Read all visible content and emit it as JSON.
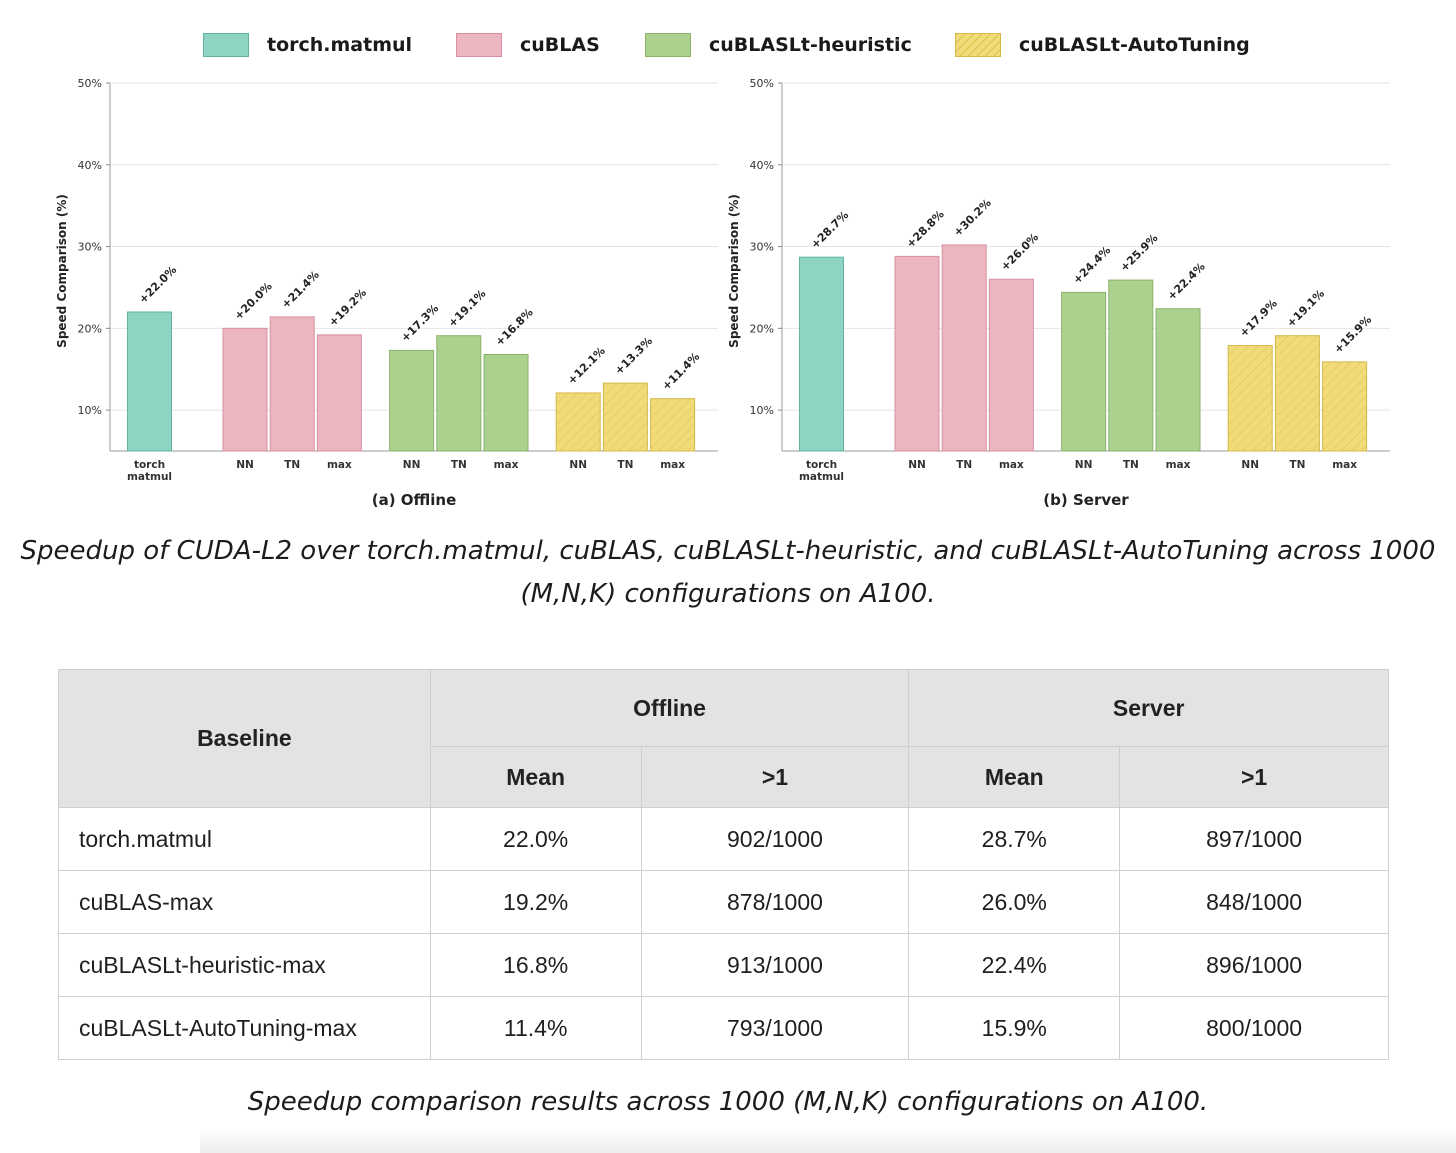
{
  "legend": [
    {
      "label": "torch.matmul",
      "color": "#8fd3c3",
      "border": "#5fb6a0",
      "hatch": false
    },
    {
      "label": "cuBLAS",
      "color": "#ecb6c1",
      "border": "#d8909f",
      "hatch": false
    },
    {
      "label": "cuBLASLt-heuristic",
      "color": "#acd18e",
      "border": "#89b36b",
      "hatch": false
    },
    {
      "label": "cuBLASLt-AutoTuning",
      "color": "#f1db78",
      "border": "#d4b94a",
      "hatch": true
    }
  ],
  "chart_data": [
    {
      "type": "bar",
      "subtitle": "(a) Offline",
      "ylabel": "Speed Comparison (%)",
      "ylim": [
        5,
        50
      ],
      "yticks": [
        "10%",
        "20%",
        "30%",
        "40%",
        "50%"
      ],
      "grid": true,
      "categories": [
        "torch\nmatmul",
        "NN",
        "TN",
        "max",
        "NN",
        "TN",
        "max",
        "NN",
        "TN",
        "max"
      ],
      "groups": [
        "torch.matmul",
        "cuBLAS",
        "cuBLAS",
        "cuBLAS",
        "cuBLASLt-heuristic",
        "cuBLASLt-heuristic",
        "cuBLASLt-heuristic",
        "cuBLASLt-AutoTuning",
        "cuBLASLt-AutoTuning",
        "cuBLASLt-AutoTuning"
      ],
      "values": [
        22.0,
        20.0,
        21.4,
        19.2,
        17.3,
        19.1,
        16.8,
        12.1,
        13.3,
        11.4
      ],
      "data_labels": [
        "+22.0%",
        "+20.0%",
        "+21.4%",
        "+19.2%",
        "+17.3%",
        "+19.1%",
        "+16.8%",
        "+12.1%",
        "+13.3%",
        "+11.4%"
      ]
    },
    {
      "type": "bar",
      "subtitle": "(b) Server",
      "ylabel": "Speed Comparison (%)",
      "ylim": [
        5,
        50
      ],
      "yticks": [
        "10%",
        "20%",
        "30%",
        "40%",
        "50%"
      ],
      "grid": true,
      "categories": [
        "torch\nmatmul",
        "NN",
        "TN",
        "max",
        "NN",
        "TN",
        "max",
        "NN",
        "TN",
        "max"
      ],
      "groups": [
        "torch.matmul",
        "cuBLAS",
        "cuBLAS",
        "cuBLAS",
        "cuBLASLt-heuristic",
        "cuBLASLt-heuristic",
        "cuBLASLt-heuristic",
        "cuBLASLt-AutoTuning",
        "cuBLASLt-AutoTuning",
        "cuBLASLt-AutoTuning"
      ],
      "values": [
        28.7,
        28.8,
        30.2,
        26.0,
        24.4,
        25.9,
        22.4,
        17.9,
        19.1,
        15.9
      ],
      "data_labels": [
        "+28.7%",
        "+28.8%",
        "+30.2%",
        "+26.0%",
        "+24.4%",
        "+25.9%",
        "+22.4%",
        "+17.9%",
        "+19.1%",
        "+15.9%"
      ]
    }
  ],
  "figure_caption": "Speedup of CUDA-L2 over torch.matmul, cuBLAS, cuBLASLt-heuristic, and cuBLASLt-AutoTuning across 1000 (M,N,K) configurations on A100.",
  "table": {
    "header": {
      "baseline": "Baseline",
      "offline": "Offline",
      "server": "Server",
      "mean": "Mean",
      "gt1": ">1"
    },
    "rows": [
      {
        "baseline": "torch.matmul",
        "offline_mean": "22.0%",
        "offline_gt1": "902/1000",
        "server_mean": "28.7%",
        "server_gt1": "897/1000"
      },
      {
        "baseline": "cuBLAS-max",
        "offline_mean": "19.2%",
        "offline_gt1": "878/1000",
        "server_mean": "26.0%",
        "server_gt1": "848/1000"
      },
      {
        "baseline": "cuBLASLt-heuristic-max",
        "offline_mean": "16.8%",
        "offline_gt1": "913/1000",
        "server_mean": "22.4%",
        "server_gt1": "896/1000"
      },
      {
        "baseline": "cuBLASLt-AutoTuning-max",
        "offline_mean": "11.4%",
        "offline_gt1": "793/1000",
        "server_mean": "15.9%",
        "server_gt1": "800/1000"
      }
    ]
  },
  "table_caption": "Speedup comparison results across 1000 (M,N,K) configurations on A100."
}
